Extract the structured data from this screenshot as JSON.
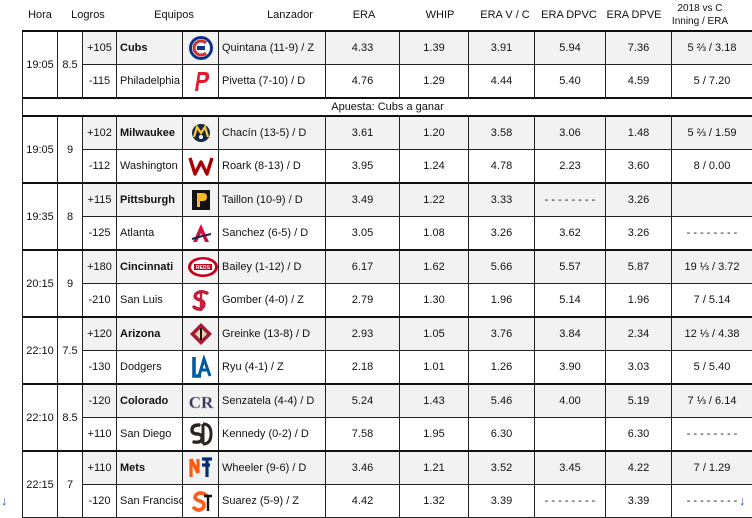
{
  "headers": {
    "hora": "Hora",
    "logros": "Logros",
    "equipos": "Equipos",
    "lanzador": "Lanzador",
    "era": "ERA",
    "whip": "WHIP",
    "era_vc": "ERA V / C",
    "era_dpvc": "ERA DPVC",
    "era_dpve": "ERA DPVE",
    "vs_line1": "2018 vs C",
    "vs_line2": "Inning / ERA"
  },
  "note": "Apuesta: Cubs a ganar",
  "games": [
    {
      "time": "19:05",
      "total": "8.5",
      "teams": [
        {
          "odds": "+105",
          "name": "Cubs",
          "bold": true,
          "logo": "cubs-logo",
          "pitcher": "Quintana (11-9) / Z",
          "era": "4.33",
          "whip": "1.39",
          "era_vc": "3.91",
          "era_dpvc": "5.94",
          "era_dpve": "7.36",
          "vs": "5 ⅔ / 3.18"
        },
        {
          "odds": "-115",
          "name": "Philadelphia",
          "bold": false,
          "logo": "phillies-logo",
          "pitcher": "Pivetta (7-10) / D",
          "era": "4.76",
          "whip": "1.29",
          "era_vc": "4.44",
          "era_dpvc": "5.40",
          "era_dpve": "4.59",
          "vs": "5 / 7.20"
        }
      ]
    },
    {
      "time": "19:05",
      "total": "9",
      "teams": [
        {
          "odds": "+102",
          "name": "Milwaukee",
          "bold": true,
          "logo": "brewers-logo",
          "pitcher": "Chacín (13-5) / D",
          "era": "3.61",
          "whip": "1.20",
          "era_vc": "3.58",
          "era_dpvc": "3.06",
          "era_dpve": "1.48",
          "vs": "5 ⅔ / 1.59"
        },
        {
          "odds": "-112",
          "name": "Washington",
          "bold": false,
          "logo": "nationals-logo",
          "pitcher": "Roark (8-13) / D",
          "era": "3.95",
          "whip": "1.24",
          "era_vc": "4.78",
          "era_dpvc": "2.23",
          "era_dpve": "3.60",
          "vs": "8 / 0.00"
        }
      ]
    },
    {
      "time": "19:35",
      "total": "8",
      "teams": [
        {
          "odds": "+115",
          "name": "Pittsburgh",
          "bold": true,
          "logo": "pirates-logo",
          "pitcher": "Taillon (10-9) / D",
          "era": "3.49",
          "whip": "1.22",
          "era_vc": "3.33",
          "era_dpvc": "- - - - - - - -",
          "era_dpve": "3.26",
          "vs": ""
        },
        {
          "odds": "-125",
          "name": "Atlanta",
          "bold": false,
          "logo": "braves-logo",
          "pitcher": "Sanchez (6-5) / D",
          "era": "3.05",
          "whip": "1.08",
          "era_vc": "3.26",
          "era_dpvc": "3.62",
          "era_dpve": "3.26",
          "vs": "- - - - - - - -"
        }
      ]
    },
    {
      "time": "20:15",
      "total": "9",
      "teams": [
        {
          "odds": "+180",
          "name": "Cincinnati",
          "bold": true,
          "logo": "reds-logo",
          "pitcher": "Bailey (1-12) / D",
          "era": "6.17",
          "whip": "1.62",
          "era_vc": "5.66",
          "era_dpvc": "5.57",
          "era_dpve": "5.87",
          "vs": "19 ⅓ / 3.72"
        },
        {
          "odds": "-210",
          "name": "San Luis",
          "bold": false,
          "logo": "cardinals-logo",
          "pitcher": "Gomber (4-0) / Z",
          "era": "2.79",
          "whip": "1.30",
          "era_vc": "1.96",
          "era_dpvc": "5.14",
          "era_dpve": "1.96",
          "vs": "7 / 5.14"
        }
      ]
    },
    {
      "time": "22:10",
      "total": "7.5",
      "teams": [
        {
          "odds": "+120",
          "name": "Arizona",
          "bold": true,
          "logo": "diamondbacks-logo",
          "pitcher": "Greinke (13-8) / D",
          "era": "2.93",
          "whip": "1.05",
          "era_vc": "3.76",
          "era_dpvc": "3.84",
          "era_dpve": "2.34",
          "vs": "12 ⅓ / 4.38"
        },
        {
          "odds": "-130",
          "name": "Dodgers",
          "bold": false,
          "logo": "dodgers-logo",
          "pitcher": "Ryu (4-1) / Z",
          "era": "2.18",
          "whip": "1.01",
          "era_vc": "1.26",
          "era_dpvc": "3.90",
          "era_dpve": "3.03",
          "vs": "5 / 5.40"
        }
      ]
    },
    {
      "time": "22:10",
      "total": "8.5",
      "teams": [
        {
          "odds": "-120",
          "name": "Colorado",
          "bold": true,
          "logo": "rockies-logo",
          "pitcher": "Senzatela (4-4) / D",
          "era": "5.24",
          "whip": "1.43",
          "era_vc": "5.46",
          "era_dpvc": "4.00",
          "era_dpve": "5.19",
          "vs": "7 ⅓ / 6.14"
        },
        {
          "odds": "+110",
          "name": "San Diego",
          "bold": false,
          "logo": "padres-logo",
          "pitcher": "Kennedy (0-2) / D",
          "era": "7.58",
          "whip": "1.95",
          "era_vc": "6.30",
          "era_dpvc": "",
          "era_dpve": "6.30",
          "vs": "- - - - - - - -"
        }
      ]
    },
    {
      "time": "22:15",
      "total": "7",
      "teams": [
        {
          "odds": "+110",
          "name": "Mets",
          "bold": true,
          "logo": "mets-logo",
          "pitcher": "Wheeler (9-6) / D",
          "era": "3.46",
          "whip": "1.21",
          "era_vc": "3.52",
          "era_dpvc": "3.45",
          "era_dpve": "4.22",
          "vs": "7 / 1.29"
        },
        {
          "odds": "-120",
          "name": "San Francisco",
          "bold": false,
          "logo": "giants-logo",
          "pitcher": "Suarez (5-9) / Z",
          "era": "4.42",
          "whip": "1.32",
          "era_vc": "3.39",
          "era_dpvc": "- - - - - - - -",
          "era_dpve": "3.39",
          "vs": "- - - - - - - -"
        }
      ]
    }
  ]
}
